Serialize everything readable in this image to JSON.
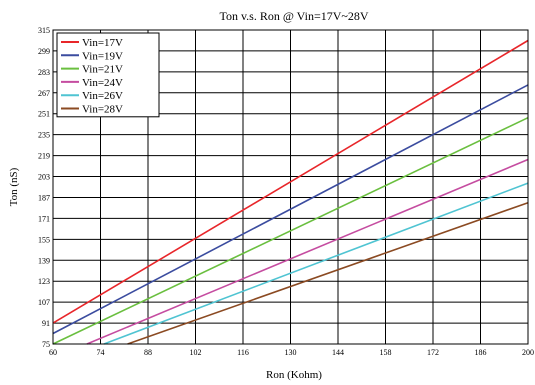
{
  "chart_data": {
    "type": "line",
    "title": "Ton v.s. Ron @ Vin=17V~28V",
    "xlabel": "Ron (Kohm)",
    "ylabel": "Ton (nS)",
    "xlim": [
      60,
      200
    ],
    "ylim": [
      75,
      315
    ],
    "x_ticks": [
      60,
      74,
      88,
      102,
      116,
      130,
      144,
      158,
      172,
      186,
      200
    ],
    "y_ticks": [
      75,
      91,
      107,
      123,
      139,
      155,
      171,
      187,
      203,
      219,
      235,
      251,
      267,
      283,
      299,
      315
    ],
    "grid": true,
    "legend_position": "top-left",
    "series": [
      {
        "name": "Vin=17V",
        "color": "#e8262a",
        "points": [
          [
            60,
            91
          ],
          [
            200,
            307
          ]
        ]
      },
      {
        "name": "Vin=19V",
        "color": "#3b4c9f",
        "points": [
          [
            60,
            83
          ],
          [
            200,
            273
          ]
        ]
      },
      {
        "name": "Vin=21V",
        "color": "#6abf3f",
        "points": [
          [
            60,
            75
          ],
          [
            200,
            248
          ]
        ]
      },
      {
        "name": "Vin=24V",
        "color": "#c54ca0",
        "points": [
          [
            70,
            75
          ],
          [
            200,
            216
          ]
        ]
      },
      {
        "name": "Vin=26V",
        "color": "#4fc4d2",
        "points": [
          [
            75,
            75
          ],
          [
            200,
            198
          ]
        ]
      },
      {
        "name": "Vin=28V",
        "color": "#8b4a22",
        "points": [
          [
            82,
            75
          ],
          [
            200,
            183
          ]
        ]
      }
    ]
  }
}
